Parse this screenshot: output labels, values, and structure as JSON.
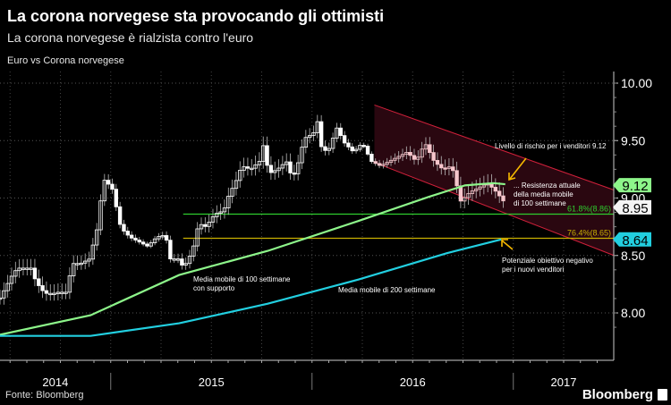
{
  "header": {
    "title": "La corona norvegese sta provocando gli ottimisti",
    "subtitle": "La corona norvegese è rialzista contro l'euro",
    "series_label": "Euro vs Corona norvegese"
  },
  "footer": {
    "source": "Fonte: Bloomberg",
    "logo": "Bloomberg"
  },
  "colors": {
    "candle": "#ffffff",
    "candle_channel": "#f6c6cc",
    "ma100": "#8df58a",
    "ma200": "#22cfe0",
    "fib618": "#2ecc2e",
    "fib764": "#c9b000",
    "channel_line": "#d0203a",
    "channel_fill": "#2a0710"
  },
  "chart_data": {
    "type": "candlestick",
    "title": "La corona norvegese sta provocando gli ottimisti",
    "xlabel": "",
    "ylabel": "",
    "xlim": [
      2014.45,
      2017.5
    ],
    "ylim": [
      7.78,
      10.12
    ],
    "y_ticks": [
      "10.00",
      "9.50",
      "9.00",
      "8.50",
      "8.00"
    ],
    "y_tick_values": [
      10.0,
      9.5,
      9.0,
      8.5,
      8.0
    ],
    "x_tick_labels": [
      "2014",
      "2015",
      "2016",
      "2017"
    ],
    "x_label_centers": [
      2014.725,
      2015.5,
      2016.5,
      2017.25
    ],
    "year_separators": [
      2015.0,
      2016.0,
      2017.0
    ],
    "weekly_close_anchors": [
      [
        2014.45,
        8.13
      ],
      [
        2014.517,
        8.35
      ],
      [
        2014.539,
        8.39
      ],
      [
        2014.606,
        8.39
      ],
      [
        2014.628,
        8.27
      ],
      [
        2014.672,
        8.17
      ],
      [
        2014.717,
        8.17
      ],
      [
        2014.739,
        8.18
      ],
      [
        2014.783,
        8.18
      ],
      [
        2014.806,
        8.43
      ],
      [
        2014.85,
        8.43
      ],
      [
        2014.894,
        8.47
      ],
      [
        2014.939,
        8.78
      ],
      [
        2014.961,
        9.17
      ],
      [
        2014.983,
        9.13
      ],
      [
        2015.006,
        9.09
      ],
      [
        2015.05,
        8.74
      ],
      [
        2015.094,
        8.66
      ],
      [
        2015.139,
        8.62
      ],
      [
        2015.183,
        8.58
      ],
      [
        2015.228,
        8.66
      ],
      [
        2015.272,
        8.68
      ],
      [
        2015.294,
        8.47
      ],
      [
        2015.339,
        8.47
      ],
      [
        2015.361,
        8.39
      ],
      [
        2015.406,
        8.54
      ],
      [
        2015.437,
        8.78
      ],
      [
        2015.472,
        8.75
      ],
      [
        2015.517,
        8.86
      ],
      [
        2015.561,
        8.89
      ],
      [
        2015.583,
        9.01
      ],
      [
        2015.628,
        9.17
      ],
      [
        2015.65,
        9.28
      ],
      [
        2015.694,
        9.25
      ],
      [
        2015.739,
        9.32
      ],
      [
        2015.761,
        9.48
      ],
      [
        2015.783,
        9.21
      ],
      [
        2015.828,
        9.25
      ],
      [
        2015.872,
        9.32
      ],
      [
        2015.894,
        9.21
      ],
      [
        2015.917,
        9.21
      ],
      [
        2015.961,
        9.52
      ],
      [
        2016.006,
        9.56
      ],
      [
        2016.028,
        9.67
      ],
      [
        2016.05,
        9.4
      ],
      [
        2016.094,
        9.44
      ],
      [
        2016.117,
        9.63
      ],
      [
        2016.161,
        9.48
      ],
      [
        2016.206,
        9.4
      ],
      [
        2016.25,
        9.48
      ],
      [
        2016.294,
        9.32
      ],
      [
        2016.339,
        9.28
      ],
      [
        2016.383,
        9.32
      ],
      [
        2016.428,
        9.36
      ],
      [
        2016.472,
        9.4
      ],
      [
        2016.517,
        9.32
      ],
      [
        2016.561,
        9.48
      ],
      [
        2016.606,
        9.32
      ],
      [
        2016.65,
        9.25
      ],
      [
        2016.694,
        9.28
      ],
      [
        2016.739,
        8.97
      ],
      [
        2016.783,
        9.05
      ],
      [
        2016.828,
        9.09
      ],
      [
        2016.872,
        9.13
      ],
      [
        2016.917,
        9.05
      ],
      [
        2016.961,
        8.95
      ]
    ],
    "series": [
      {
        "name": "Media mobile 100 settimane",
        "points": [
          [
            2014.45,
            7.81
          ],
          [
            2014.9,
            7.98
          ],
          [
            2015.34,
            8.33
          ],
          [
            2015.78,
            8.54
          ],
          [
            2016.23,
            8.8
          ],
          [
            2016.58,
            9.01
          ],
          [
            2016.76,
            9.11
          ],
          [
            2016.9,
            9.13
          ],
          [
            2016.96,
            9.12
          ]
        ]
      },
      {
        "name": "Media mobile 200 settimane",
        "points": [
          [
            2014.45,
            7.8
          ],
          [
            2014.9,
            7.8
          ],
          [
            2015.34,
            7.91
          ],
          [
            2015.78,
            8.08
          ],
          [
            2016.23,
            8.29
          ],
          [
            2016.67,
            8.52
          ],
          [
            2016.94,
            8.64
          ]
        ]
      }
    ],
    "channel": {
      "upper": [
        [
          2016.31,
          9.81
        ],
        [
          2017.5,
          9.07
        ]
      ],
      "lower": [
        [
          2016.31,
          9.31
        ],
        [
          2017.5,
          8.5
        ]
      ]
    },
    "fib_levels": [
      {
        "label": "61.8%(8.86)",
        "value": 8.86,
        "start": 2015.36
      },
      {
        "label": "76.4%(8.65)",
        "value": 8.65,
        "start": 2015.36
      }
    ],
    "last_value_labels": [
      {
        "label": "9.12",
        "value": 9.12,
        "kind": "ma100"
      },
      {
        "label": "8.95",
        "value": 8.95,
        "kind": "price"
      },
      {
        "label": "8.64",
        "value": 8.64,
        "kind": "ma200"
      }
    ],
    "annotations": {
      "risk_level": "Livello di rischio per i venditori 9.12",
      "resistance": [
        "... Resistenza attuale",
        "della media mobile",
        "di 100 settimane"
      ],
      "target": [
        "Potenziale obiettivo negativo",
        "per i nuovi venditori"
      ],
      "ma100_support": [
        "Media mobile di 100 settimane",
        "con supporto"
      ],
      "ma200": "Media mobile di 200 settimane"
    }
  }
}
